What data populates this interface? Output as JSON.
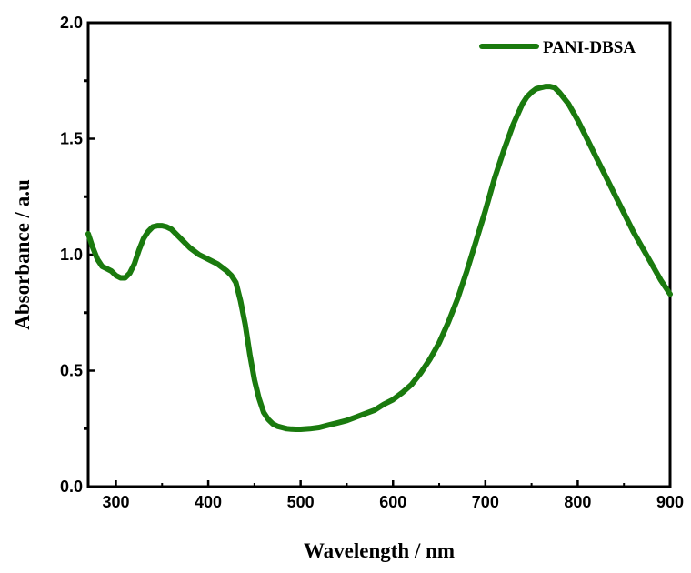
{
  "chart_data": {
    "type": "line",
    "title": "",
    "xlabel": "Wavelength / nm",
    "ylabel": "Absorbance / a.u",
    "xlim": [
      270,
      900
    ],
    "ylim": [
      0.0,
      2.0
    ],
    "x_ticks": [
      300,
      400,
      500,
      600,
      700,
      800,
      900
    ],
    "x_tick_labels": [
      "300",
      "400",
      "500",
      "600",
      "700",
      "800",
      "900"
    ],
    "y_ticks": [
      0.0,
      0.5,
      1.0,
      1.5,
      2.0
    ],
    "y_tick_labels": [
      "0.0",
      "0.5",
      "1.0",
      "1.5",
      "2.0"
    ],
    "grid": false,
    "legend_position": "top-right",
    "series": [
      {
        "name": "PANI-DBSA",
        "color": "#1a7a0e",
        "x": [
          270,
          275,
          280,
          285,
          290,
          295,
          300,
          305,
          310,
          315,
          320,
          325,
          330,
          335,
          340,
          345,
          350,
          355,
          360,
          365,
          370,
          380,
          390,
          400,
          410,
          420,
          425,
          430,
          435,
          440,
          445,
          450,
          455,
          460,
          465,
          470,
          475,
          480,
          485,
          490,
          495,
          500,
          510,
          520,
          530,
          540,
          550,
          560,
          570,
          580,
          590,
          600,
          610,
          620,
          630,
          640,
          650,
          660,
          670,
          680,
          690,
          700,
          710,
          720,
          730,
          740,
          745,
          750,
          755,
          760,
          765,
          770,
          775,
          780,
          790,
          800,
          810,
          820,
          830,
          840,
          850,
          860,
          870,
          880,
          890,
          900
        ],
        "y": [
          1.09,
          1.03,
          0.98,
          0.95,
          0.94,
          0.93,
          0.91,
          0.9,
          0.9,
          0.92,
          0.96,
          1.02,
          1.07,
          1.1,
          1.12,
          1.125,
          1.125,
          1.12,
          1.11,
          1.09,
          1.07,
          1.03,
          1.0,
          0.98,
          0.96,
          0.93,
          0.91,
          0.88,
          0.8,
          0.7,
          0.57,
          0.46,
          0.38,
          0.32,
          0.29,
          0.27,
          0.26,
          0.255,
          0.25,
          0.248,
          0.247,
          0.247,
          0.25,
          0.255,
          0.265,
          0.275,
          0.285,
          0.3,
          0.315,
          0.33,
          0.355,
          0.375,
          0.405,
          0.44,
          0.49,
          0.55,
          0.62,
          0.71,
          0.81,
          0.93,
          1.06,
          1.19,
          1.33,
          1.45,
          1.56,
          1.65,
          1.68,
          1.7,
          1.715,
          1.72,
          1.725,
          1.725,
          1.72,
          1.7,
          1.65,
          1.58,
          1.5,
          1.42,
          1.34,
          1.26,
          1.18,
          1.1,
          1.03,
          0.96,
          0.89,
          0.83
        ]
      }
    ]
  }
}
